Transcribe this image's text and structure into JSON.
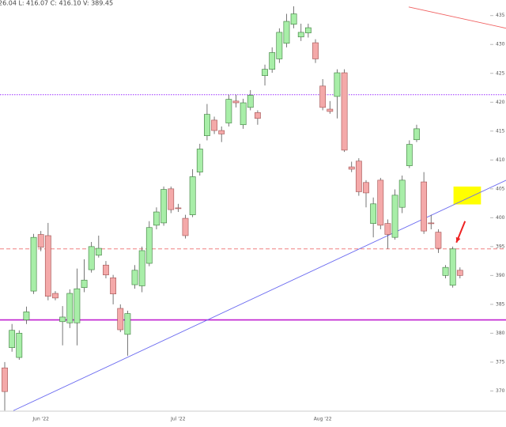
{
  "chart_data": {
    "type": "candlestick",
    "header": "26.04 L: 416.07 C: 416.10 V: 389.45",
    "categories": [
      null,
      null,
      null,
      null,
      null,
      "Jun '22",
      null,
      null,
      null,
      null,
      null,
      null,
      null,
      null,
      null,
      null,
      null,
      null,
      null,
      null,
      null,
      null,
      null,
      null,
      "Jul '22",
      null,
      null,
      null,
      null,
      null,
      null,
      null,
      null,
      null,
      null,
      null,
      null,
      null,
      null,
      null,
      null,
      null,
      null,
      null,
      "Aug '22",
      null,
      null,
      null,
      null,
      null,
      null,
      null,
      null,
      null,
      null,
      null,
      null,
      null,
      null,
      null,
      null,
      null,
      null,
      null
    ],
    "open": [
      374.0,
      377.5,
      375.8,
      382.3,
      387.3,
      397.1,
      396.9,
      386.9,
      382.0,
      381.8,
      381.8,
      387.9,
      391.0,
      393.5,
      391.8,
      389.6,
      384.3,
      379.8,
      388.4,
      388.2,
      392.1,
      398.7,
      399.1,
      405.0,
      401.7,
      399.9,
      400.5,
      407.9,
      414.2,
      416.9,
      415.1,
      416.4,
      420.2,
      416.1,
      419.1,
      418.2,
      424.6,
      425.7,
      427.5,
      430.2,
      433.5,
      431.3,
      432.0,
      430.3,
      422.8,
      418.8,
      421.0,
      425.1,
      408.8,
      409.8,
      406.1,
      399.0,
      406.5,
      399.0,
      396.6,
      401.8,
      409.0,
      413.5,
      406.2,
      399.1,
      397.5,
      390.0,
      388.3,
      390.9
    ],
    "high": [
      375.0,
      381.6,
      380.5,
      384.6,
      397.2,
      397.7,
      399.1,
      387.3,
      384.7,
      387.6,
      391.2,
      392.8,
      395.8,
      396.9,
      392.5,
      390.1,
      385.0,
      383.9,
      391.8,
      395.0,
      399.4,
      401.8,
      405.4,
      405.4,
      402.4,
      400.5,
      408.4,
      412.8,
      419.7,
      417.5,
      415.8,
      421.3,
      421.3,
      420.6,
      422.1,
      418.6,
      426.5,
      429.5,
      432.8,
      435.3,
      436.6,
      433.6,
      433.6,
      430.9,
      424.0,
      420.2,
      425.7,
      425.7,
      409.7,
      410.3,
      406.5,
      403.5,
      406.9,
      399.7,
      404.9,
      407.3,
      413.4,
      416.1,
      407.9,
      400.5,
      398.0,
      391.8,
      395.0,
      391.4
    ],
    "low": [
      366.6,
      376.8,
      375.4,
      381.6,
      386.8,
      394.2,
      385.7,
      385.7,
      377.9,
      380.9,
      377.9,
      387.1,
      390.5,
      393.1,
      389.5,
      385.0,
      380.2,
      376.1,
      387.7,
      387.1,
      391.6,
      398.0,
      398.6,
      400.8,
      401.0,
      396.4,
      400.1,
      407.3,
      413.4,
      414.5,
      413.1,
      415.8,
      419.1,
      415.4,
      418.6,
      416.1,
      422.9,
      425.1,
      426.8,
      429.5,
      432.8,
      430.6,
      431.2,
      426.8,
      418.6,
      418.0,
      417.2,
      411.4,
      407.9,
      403.8,
      401.8,
      396.6,
      398.0,
      394.6,
      396.2,
      400.8,
      408.6,
      413.1,
      397.2,
      398.0,
      393.9,
      389.5,
      387.9,
      389.5
    ],
    "close": [
      369.9,
      380.5,
      380.0,
      383.7,
      396.6,
      394.9,
      386.4,
      386.1,
      382.8,
      386.9,
      387.7,
      389.2,
      395.0,
      394.7,
      390.1,
      386.8,
      380.6,
      383.4,
      390.9,
      394.3,
      398.3,
      401.0,
      404.9,
      401.4,
      401.6,
      396.9,
      407.1,
      411.9,
      417.9,
      415.1,
      414.5,
      420.5,
      419.9,
      419.9,
      421.2,
      417.2,
      425.7,
      428.6,
      432.1,
      434.0,
      435.3,
      432.1,
      432.9,
      427.5,
      419.1,
      418.4,
      425.1,
      411.7,
      408.4,
      404.5,
      404.3,
      402.4,
      398.7,
      397.1,
      403.9,
      406.5,
      412.7,
      415.4,
      397.7,
      399.0,
      394.7,
      391.4,
      394.6,
      390.0
    ],
    "up_color": "#a8eea8",
    "down_color": "#f4a9a9",
    "ylim": [
      366.5,
      437.7
    ],
    "yticks": [
      370,
      375,
      380,
      385,
      390,
      395,
      400,
      405,
      410,
      415,
      420,
      425,
      430,
      435
    ],
    "hlines": [
      {
        "value": 421.3,
        "color": "#9b30ff",
        "style": "dotted"
      },
      {
        "value": 394.6,
        "color": "#f08080",
        "style": "dashed"
      },
      {
        "value": 382.3,
        "color": "#c020d0",
        "style": "solid"
      }
    ],
    "trendlines": [
      {
        "x": [
          1.2,
          69.4
        ],
        "y": [
          366.6,
          406.5
        ],
        "color": "#6a6af0"
      },
      {
        "x": [
          55.9,
          69.4
        ],
        "y": [
          436.5,
          432.8
        ],
        "color": "#f06060"
      }
    ],
    "highlight": {
      "x": [
        62.1,
        65.9
      ],
      "y": [
        405.4,
        402.3
      ],
      "color": "#ffff00"
    },
    "arrow": {
      "x": [
        63.7,
        62.5
      ],
      "y": [
        399.4,
        395.7
      ],
      "color": "#ee2222"
    }
  }
}
